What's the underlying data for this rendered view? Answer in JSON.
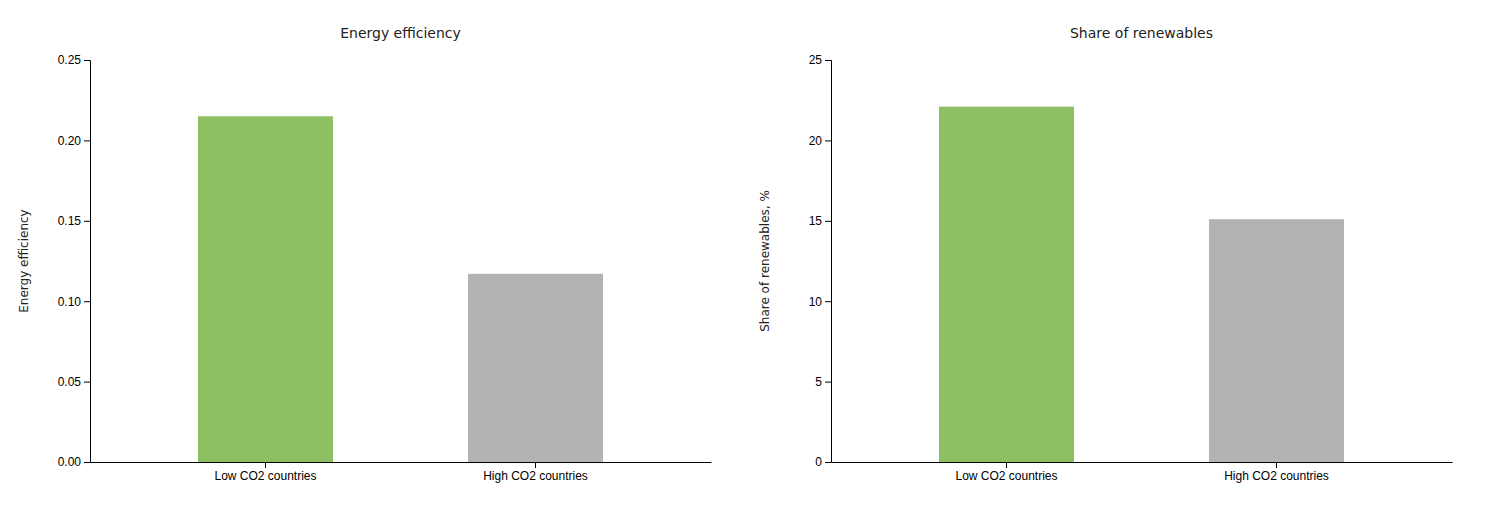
{
  "chart_data": [
    {
      "type": "bar",
      "title": "Energy efficiency",
      "ylabel": "Energy efficiency",
      "categories": [
        "Low CO2 countries",
        "High CO2 countries"
      ],
      "values": [
        0.215,
        0.117
      ],
      "colors": [
        "#8dc063",
        "#b3b3b3"
      ],
      "ylim": [
        0,
        0.25
      ],
      "yticks": [
        {
          "value": 0,
          "label": "0.00"
        },
        0.05,
        {
          "value": 0.1,
          "label": "0.10"
        },
        0.15,
        {
          "value": 0.2,
          "label": "0.20"
        },
        0.25
      ],
      "grid": false
    },
    {
      "type": "bar",
      "title": "Share of renewables",
      "ylabel": "Share of renewables, %",
      "categories": [
        "Low CO2 countries",
        "High CO2 countries"
      ],
      "values": [
        22.1,
        15.1
      ],
      "colors": [
        "#8dc063",
        "#b3b3b3"
      ],
      "ylim": [
        0,
        25
      ],
      "yticks": [
        0,
        5,
        10,
        15,
        20,
        25
      ],
      "grid": false
    }
  ]
}
